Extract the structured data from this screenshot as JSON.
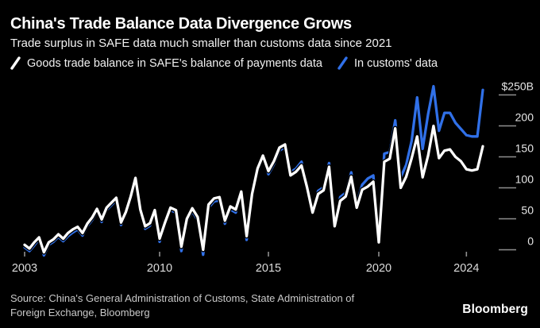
{
  "header": {
    "title": "China's Trade Balance Data Divergence Grows",
    "subtitle": "Trade surplus in SAFE data much smaller than customs data since 2021"
  },
  "legend": {
    "items": [
      {
        "label": "Goods trade balance in SAFE's balance of payments data",
        "color": "#ffffff"
      },
      {
        "label": "In customs' data",
        "color": "#3070e8"
      }
    ]
  },
  "chart_data": {
    "type": "line",
    "title": "China's Trade Balance Data Divergence Grows",
    "subtitle": "Trade surplus in SAFE data much smaller than customs data since 2021",
    "unit": "billions of US dollars",
    "frequency": "quarterly",
    "x_start": "2003-Q1",
    "x_end": "2024-Q4",
    "ylim": [
      -15,
      265
    ],
    "grid": false,
    "legend_position": "top",
    "y_ticks": [
      {
        "label": "$250B",
        "value": 250
      },
      {
        "label": "200",
        "value": 200
      },
      {
        "label": "150",
        "value": 150
      },
      {
        "label": "100",
        "value": 100
      },
      {
        "label": "50",
        "value": 50
      },
      {
        "label": "0",
        "value": 0
      }
    ],
    "x_ticks": [
      {
        "label": "2003",
        "index": 0
      },
      {
        "label": "2010",
        "index": 28
      },
      {
        "label": "2015",
        "index": 48
      },
      {
        "label": "2020",
        "index": 68
      },
      {
        "label": "2024",
        "index": 84
      }
    ],
    "series": [
      {
        "name": "Goods trade balance in SAFE's balance of payments data",
        "color": "#ffffff",
        "values": [
          8,
          2,
          12,
          20,
          -4,
          12,
          17,
          25,
          18,
          27,
          33,
          37,
          27,
          42,
          52,
          66,
          49,
          68,
          76,
          84,
          44,
          61,
          86,
          116,
          65,
          38,
          43,
          64,
          18,
          44,
          68,
          64,
          5,
          50,
          67,
          53,
          0,
          73,
          83,
          85,
          47,
          70,
          65,
          94,
          22,
          90,
          131,
          152,
          127,
          143,
          165,
          170,
          120,
          126,
          136,
          101,
          60,
          90,
          96,
          134,
          38,
          79,
          86,
          118,
          68,
          97,
          102,
          110,
          12,
          142,
          147,
          196,
          100,
          118,
          148,
          183,
          117,
          152,
          200,
          148,
          160,
          162,
          150,
          143,
          130,
          128,
          130,
          167
        ]
      },
      {
        "name": "In customs' data",
        "color": "#3070e8",
        "values": [
          4,
          -2,
          7,
          17,
          -9,
          8,
          13,
          21,
          14,
          22,
          28,
          33,
          23,
          38,
          48,
          62,
          45,
          64,
          72,
          80,
          40,
          57,
          82,
          112,
          61,
          34,
          39,
          60,
          13,
          40,
          64,
          60,
          -2,
          46,
          62,
          48,
          -8,
          68,
          78,
          80,
          42,
          65,
          60,
          89,
          16,
          85,
          126,
          148,
          122,
          138,
          160,
          166,
          125,
          131,
          142,
          107,
          65,
          95,
          101,
          140,
          44,
          85,
          92,
          125,
          75,
          105,
          115,
          120,
          15,
          155,
          158,
          209,
          117,
          137,
          176,
          246,
          163,
          219,
          264,
          192,
          221,
          221,
          205,
          195,
          185,
          183,
          183,
          258
        ]
      }
    ]
  },
  "footer": {
    "source": "Source: China's General Administration of Customs, State Administration of Foreign Exchange, Bloomberg",
    "logo": "Bloomberg"
  }
}
